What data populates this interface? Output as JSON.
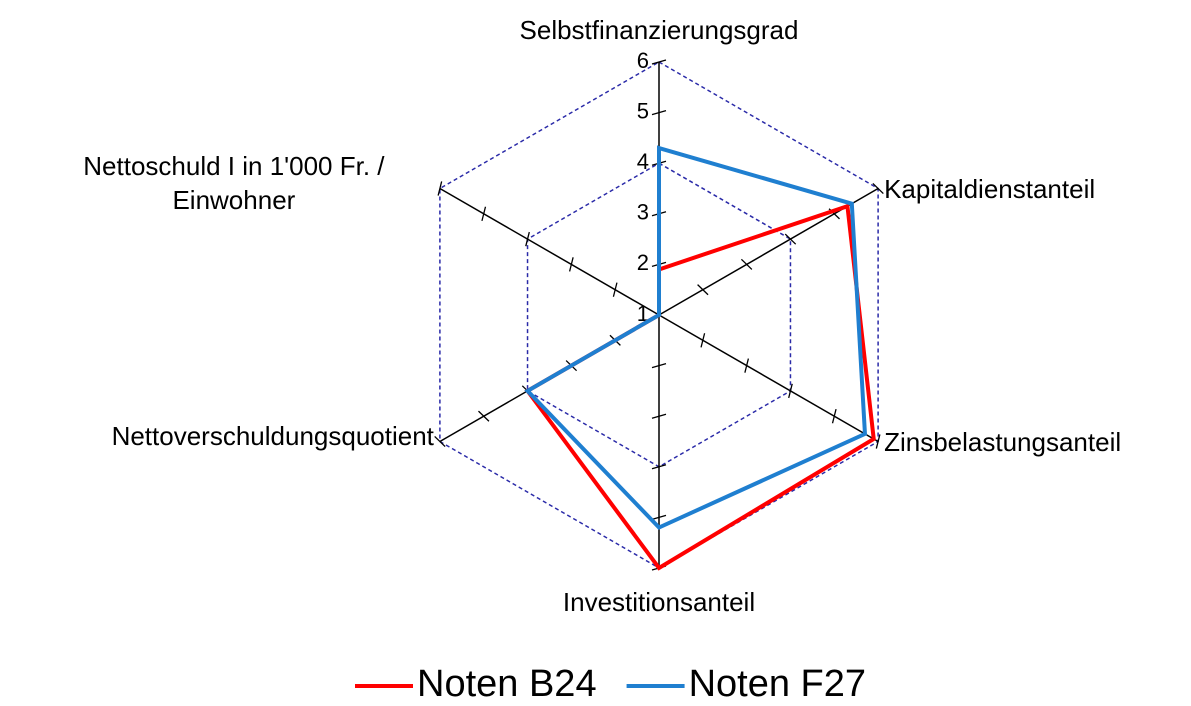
{
  "chart_data": {
    "type": "radar",
    "categories": [
      "Selbstfinanzierungsgrad",
      "Kapitaldienstanteil",
      "Zinsbelastungsanteil",
      "Investitionsanteil",
      "Nettoverschuldungsquotient",
      "Nettoschuld I in 1'000 Fr. / Einwohner"
    ],
    "series": [
      {
        "name": "Noten B24",
        "color": "#ff0000",
        "values": [
          1.9,
          5.3,
          5.9,
          6,
          4,
          1
        ]
      },
      {
        "name": "Noten F27",
        "color": "#1f7fd0",
        "values": [
          4.3,
          5.4,
          5.7,
          5.2,
          4,
          1
        ]
      }
    ],
    "rlim": [
      1,
      6
    ],
    "rticks": [
      1,
      2,
      3,
      4,
      5,
      6
    ],
    "rings": [
      4,
      6
    ],
    "legend": "bottom"
  }
}
